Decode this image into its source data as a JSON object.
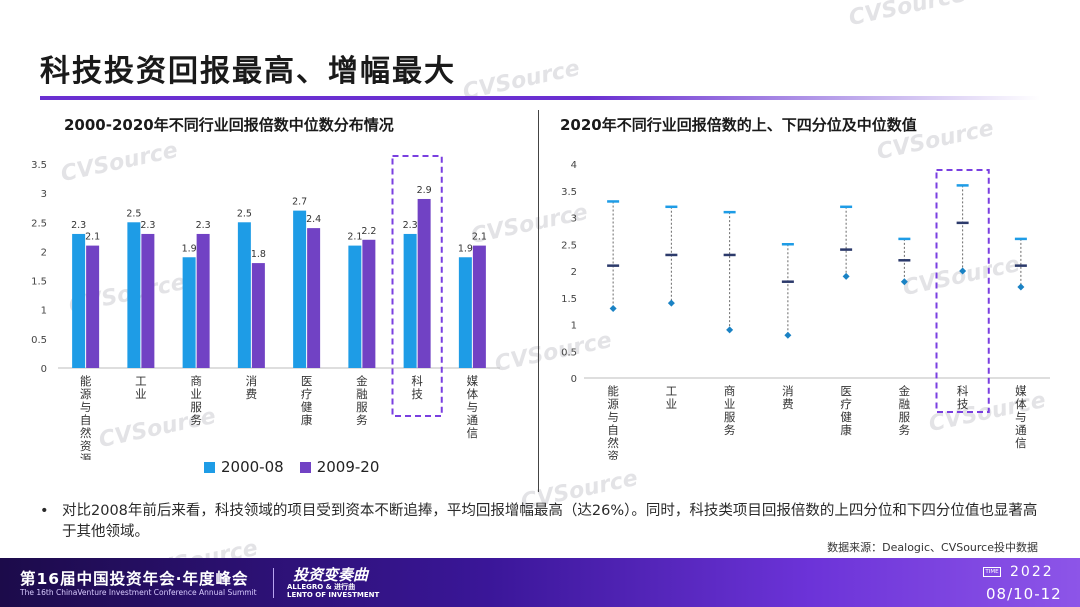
{
  "page": {
    "title": "科技投资回报最高、增幅最大",
    "watermark": "CVSource",
    "watermark_sub": "投中数据"
  },
  "left_chart_title": "2000-2020年不同行业回报倍数中位数分布情况",
  "right_chart_title": "2020年不同行业回报倍数的上、下四分位及中位数值",
  "legend": {
    "a": "2000-08",
    "b": "2009-20"
  },
  "bullet": "对比2008年前后来看，科技领域的项目受到资本不断追捧，平均回报增幅最高（达26%）。同时，科技类项目回报倍数的上四分位和下四分位值也显著高于其他领域。",
  "source": "数据来源：Dealogic、CVSource投中数据",
  "footer": {
    "title": "第16届中国投资年会·年度峰会",
    "subtitle": "The 16th ChinaVenture Investment Conference Annual Summit",
    "logo": "投资变奏曲",
    "logo_sub1": "ALLEGRO & 进行曲",
    "logo_sub2": "LENTO OF INVESTMENT",
    "time_label": "TIME",
    "year": "2022",
    "dates": "08/10-12"
  },
  "colors": {
    "accent": "#6a2fd1",
    "series_a": "#1e9ce6",
    "series_b": "#7142c4",
    "highlight_box": "#7a3fe0",
    "whisker_top": "#1e9ce6",
    "median_bar": "#2c3a6b",
    "low_point": "#1a82c4"
  },
  "chart_data": [
    {
      "type": "bar",
      "title": "2000-2020年不同行业回报倍数中位数分布情况",
      "categories": [
        "能源与自然资源",
        "工业",
        "商业服务",
        "消费",
        "医疗健康",
        "金融服务",
        "科技",
        "媒体与通信"
      ],
      "series": [
        {
          "name": "2000-08",
          "values": [
            2.3,
            2.5,
            1.9,
            2.5,
            2.7,
            2.1,
            2.3,
            1.9
          ]
        },
        {
          "name": "2009-20",
          "values": [
            2.1,
            2.3,
            2.3,
            1.8,
            2.4,
            2.2,
            2.9,
            2.1
          ]
        }
      ],
      "ylim": [
        0,
        3.5
      ],
      "yticks": [
        0,
        0.5,
        1,
        1.5,
        2,
        2.5,
        3,
        3.5
      ],
      "ytick_labels": [
        "0",
        "0.5",
        "1",
        "1.5",
        "2",
        "2.5",
        "3",
        "3.5"
      ],
      "highlight_category": "科技",
      "legend_position": "bottom"
    },
    {
      "type": "scatter",
      "title": "2020年不同行业回报倍数的上、下四分位及中位数值",
      "categories": [
        "能源与自然资源",
        "工业",
        "商业服务",
        "消费",
        "医疗健康",
        "金融服务",
        "科技",
        "媒体与通信"
      ],
      "upper_quartile": [
        3.3,
        3.2,
        3.1,
        2.5,
        3.2,
        2.6,
        3.6,
        2.6
      ],
      "median": [
        2.1,
        2.3,
        2.3,
        1.8,
        2.4,
        2.2,
        2.9,
        2.1
      ],
      "lower_quartile": [
        1.3,
        1.4,
        0.9,
        0.8,
        1.9,
        1.8,
        2.0,
        1.7
      ],
      "ylim": [
        0,
        4
      ],
      "yticks": [
        0,
        0.5,
        1,
        1.5,
        2,
        2.5,
        3,
        3.5,
        4
      ],
      "ytick_labels": [
        "0",
        "0.5",
        "1",
        "1.5",
        "2",
        "2.5",
        "3",
        "3.5",
        "4"
      ],
      "highlight_category": "科技"
    }
  ]
}
